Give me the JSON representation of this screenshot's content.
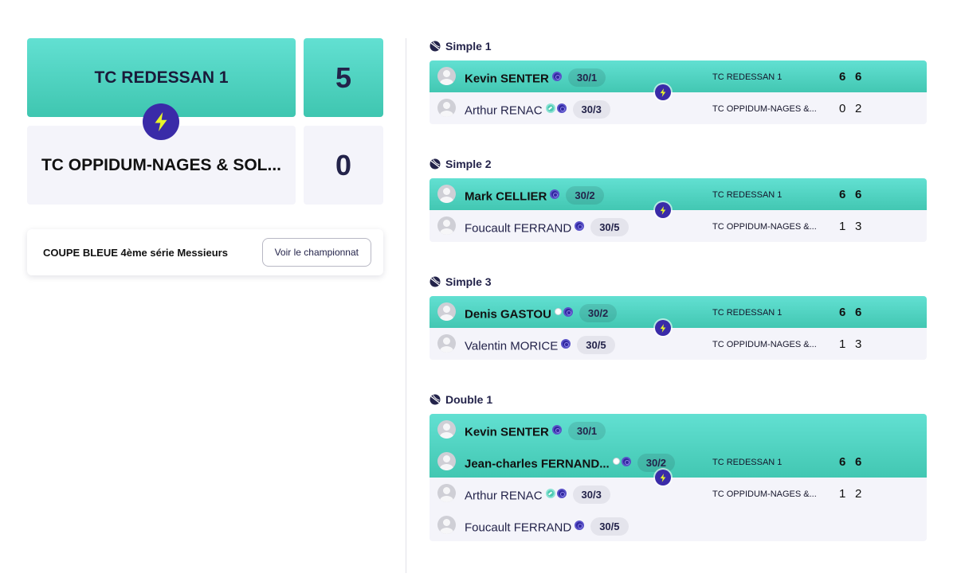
{
  "header": {
    "home_team": "TC REDESSAN 1",
    "home_score": "5",
    "away_team": "TC OPPIDUM-NAGES & SOL...",
    "away_score": "0"
  },
  "competition": {
    "name": "COUPE BLEUE 4ème série Messieurs",
    "button_label": "Voir le championnat"
  },
  "matches": [
    {
      "title": "Simple 1",
      "winner": {
        "players": [
          {
            "name": "Kevin SENTER",
            "badges": [
              "navy"
            ],
            "rank": "30/1"
          }
        ],
        "club": "TC REDESSAN 1",
        "sets": [
          "6",
          "6"
        ]
      },
      "loser": {
        "players": [
          {
            "name": "Arthur RENAC",
            "badges": [
              "teal",
              "navy"
            ],
            "rank": "30/3"
          }
        ],
        "club": "TC OPPIDUM-NAGES &...",
        "sets": [
          "0",
          "2"
        ]
      }
    },
    {
      "title": "Simple 2",
      "winner": {
        "players": [
          {
            "name": "Mark CELLIER",
            "badges": [
              "navy"
            ],
            "rank": "30/2"
          }
        ],
        "club": "TC REDESSAN 1",
        "sets": [
          "6",
          "6"
        ]
      },
      "loser": {
        "players": [
          {
            "name": "Foucault FERRAND",
            "badges": [
              "navy"
            ],
            "rank": "30/5"
          }
        ],
        "club": "TC OPPIDUM-NAGES &...",
        "sets": [
          "1",
          "3"
        ]
      }
    },
    {
      "title": "Simple 3",
      "winner": {
        "players": [
          {
            "name": "Denis GASTOU",
            "badges": [
              "white",
              "navy"
            ],
            "rank": "30/2"
          }
        ],
        "club": "TC REDESSAN 1",
        "sets": [
          "6",
          "6"
        ]
      },
      "loser": {
        "players": [
          {
            "name": "Valentin MORICE",
            "badges": [
              "navy"
            ],
            "rank": "30/5"
          }
        ],
        "club": "TC OPPIDUM-NAGES &...",
        "sets": [
          "1",
          "3"
        ]
      }
    },
    {
      "title": "Double 1",
      "winner": {
        "players": [
          {
            "name": "Kevin SENTER",
            "badges": [
              "navy"
            ],
            "rank": "30/1"
          },
          {
            "name": "Jean-charles FERNAND...",
            "badges": [
              "white",
              "navy"
            ],
            "rank": "30/2"
          }
        ],
        "club": "TC REDESSAN 1",
        "sets": [
          "6",
          "6"
        ]
      },
      "loser": {
        "players": [
          {
            "name": "Arthur RENAC",
            "badges": [
              "teal",
              "navy"
            ],
            "rank": "30/3"
          },
          {
            "name": "Foucault FERRAND",
            "badges": [
              "navy"
            ],
            "rank": "30/5"
          }
        ],
        "club": "TC OPPIDUM-NAGES &...",
        "sets": [
          "1",
          "2"
        ]
      }
    }
  ],
  "icons": {
    "match_ball": "tennis-ball-icon",
    "winner_marker": "lightning-bolt-icon",
    "player_avatar": "user-avatar-icon"
  },
  "colors": {
    "winner_gradient_top": "#62e0d2",
    "winner_gradient_bottom": "#3fc6b0",
    "loser_bg": "#f4f4fa",
    "bolt_bg": "#3a2ba8",
    "bolt_fg": "#e8f52a",
    "text_dark": "#23234a"
  }
}
